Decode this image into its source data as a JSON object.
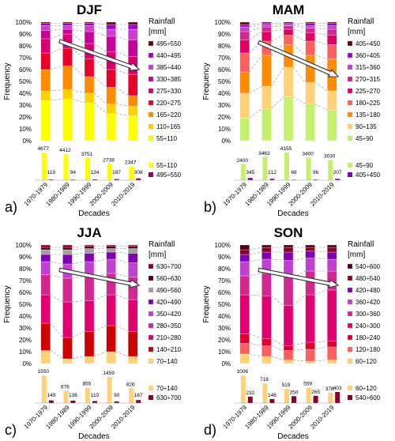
{
  "chart_data": [
    {
      "type": "bar",
      "stacked": true,
      "title": "DJF",
      "panel_label": "a)",
      "ylabel": "Frequency",
      "xlabel": "Decades",
      "categories": [
        "1970-1979",
        "1980-1989",
        "1990-1999",
        "2000-2009",
        "2010-2019"
      ],
      "ylim": [
        0,
        100
      ],
      "yticks": [
        "0%",
        "10%",
        "20%",
        "30%",
        "40%",
        "50%",
        "60%",
        "70%",
        "80%",
        "90%",
        "100%"
      ],
      "legend_title": "Rainfall [mm]",
      "series": [
        {
          "name": "55÷110",
          "color": "#ffff00",
          "values": [
            34,
            35,
            32,
            23,
            21
          ]
        },
        {
          "name": "110÷165",
          "color": "#ffd000",
          "values": [
            8,
            8,
            8,
            8,
            8
          ]
        },
        {
          "name": "165÷220",
          "color": "#ff8c00",
          "values": [
            18,
            20,
            14,
            14,
            9
          ]
        },
        {
          "name": "220÷275",
          "color": "#e8002a",
          "values": [
            14,
            15,
            15,
            15,
            18
          ]
        },
        {
          "name": "275÷330",
          "color": "#d5006f",
          "values": [
            12,
            12,
            13,
            15,
            15
          ]
        },
        {
          "name": "330÷385",
          "color": "#c70098",
          "values": [
            7,
            4,
            10,
            13,
            14
          ]
        },
        {
          "name": "385÷440",
          "color": "#cf3cd4",
          "values": [
            4,
            3,
            5,
            6,
            9
          ]
        },
        {
          "name": "440÷495",
          "color": "#a000c8",
          "values": [
            2,
            2,
            2,
            4,
            4
          ]
        },
        {
          "name": "495÷550",
          "color": "#5c0a0a",
          "values": [
            1,
            1,
            1,
            2,
            2
          ]
        }
      ],
      "counts": {
        "legend": [
          {
            "name": "55÷110",
            "color": "#ffff00"
          },
          {
            "name": "495÷550",
            "color": "#9a0064"
          }
        ],
        "low": {
          "values": [
            4677,
            4412,
            3751,
            2738,
            2347
          ],
          "labels": [
            "4677",
            "4412",
            "3751",
            "2738",
            "2347"
          ]
        },
        "high": {
          "values": [
            119,
            94,
            134,
            187,
            308
          ],
          "labels": [
            "119",
            "94",
            "134",
            "187",
            "308"
          ]
        }
      }
    },
    {
      "type": "bar",
      "stacked": true,
      "title": "MAM",
      "panel_label": "b)",
      "ylabel": "Frequency",
      "xlabel": "Decades",
      "categories": [
        "1970-1979",
        "1980-1989",
        "1990-1999",
        "2000-2009",
        "2010-2019"
      ],
      "ylim": [
        0,
        100
      ],
      "yticks": [
        "0%",
        "10%",
        "20%",
        "30%",
        "40%",
        "50%",
        "60%",
        "70%",
        "80%",
        "90%",
        "100%"
      ],
      "legend_title": "Rainfall [mm]",
      "series": [
        {
          "name": "45÷90",
          "color": "#c5f06e",
          "values": [
            19,
            27,
            37,
            31,
            26
          ]
        },
        {
          "name": "90÷135",
          "color": "#ffd27a",
          "values": [
            21,
            19,
            25,
            18,
            16
          ]
        },
        {
          "name": "135÷180",
          "color": "#ff8c00",
          "values": [
            18,
            26,
            19,
            23,
            27
          ]
        },
        {
          "name": "180÷225",
          "color": "#ff5f5f",
          "values": [
            16,
            12,
            8,
            12,
            12
          ]
        },
        {
          "name": "225÷270",
          "color": "#e0005f",
          "values": [
            11,
            8,
            5,
            7,
            8
          ]
        },
        {
          "name": "270÷315",
          "color": "#d02890",
          "values": [
            7,
            4,
            3,
            4,
            5
          ]
        },
        {
          "name": "315÷360",
          "color": "#c040d0",
          "values": [
            4,
            2,
            1,
            2,
            3
          ]
        },
        {
          "name": "360÷405",
          "color": "#a000c8",
          "values": [
            2,
            1,
            1,
            2,
            2
          ]
        },
        {
          "name": "405÷450",
          "color": "#5c0a0a",
          "values": [
            2,
            1,
            1,
            1,
            1
          ]
        }
      ],
      "counts": {
        "legend": [
          {
            "name": "45÷90",
            "color": "#c5f06e"
          },
          {
            "name": "405÷450",
            "color": "#8a00b0"
          }
        ],
        "low": {
          "values": [
            2400,
            3463,
            4155,
            3400,
            3030
          ],
          "labels": [
            "2400",
            "3463",
            "4155",
            "3400",
            "3030"
          ]
        },
        "high": {
          "values": [
            345,
            212,
            68,
            96,
            207
          ],
          "labels": [
            "345",
            "212",
            "68",
            "96",
            "207"
          ]
        }
      }
    },
    {
      "type": "bar",
      "stacked": true,
      "title": "JJA",
      "panel_label": "c)",
      "ylabel": "Frequency",
      "xlabel": "Decades",
      "categories": [
        "1970-1979",
        "1980-1989",
        "1990-1999",
        "2000-2009",
        "2010-2019"
      ],
      "ylim": [
        0,
        100
      ],
      "yticks": [
        "0%",
        "10%",
        "20%",
        "30%",
        "40%",
        "50%",
        "60%",
        "70%",
        "80%",
        "90%",
        "100%"
      ],
      "legend_title": "Rainfall [mm]",
      "series": [
        {
          "name": "70÷140",
          "color": "#ffd27a",
          "values": [
            11,
            4,
            6,
            10,
            6
          ]
        },
        {
          "name": "140÷210",
          "color": "#cc0000",
          "values": [
            23,
            18,
            21,
            22,
            21
          ]
        },
        {
          "name": "210÷280",
          "color": "#e0006f",
          "values": [
            24,
            30,
            26,
            26,
            27
          ]
        },
        {
          "name": "280÷350",
          "color": "#d02890",
          "values": [
            17,
            20,
            20,
            18,
            19
          ]
        },
        {
          "name": "350÷420",
          "color": "#c040d0",
          "values": [
            11,
            12,
            13,
            12,
            12
          ]
        },
        {
          "name": "420÷490",
          "color": "#8000b0",
          "values": [
            6,
            8,
            7,
            6,
            8
          ]
        },
        {
          "name": "490÷560",
          "color": "#a0a0a0",
          "values": [
            4,
            4,
            4,
            3,
            4
          ]
        },
        {
          "name": "560÷630",
          "color": "#4a0010",
          "values": [
            2,
            2,
            2,
            2,
            2
          ]
        },
        {
          "name": "630÷700",
          "color": "#8b0028",
          "values": [
            2,
            2,
            1,
            1,
            1
          ]
        }
      ],
      "counts": {
        "legend": [
          {
            "name": "70÷140",
            "color": "#ffd27a"
          },
          {
            "name": "630÷700",
            "color": "#8b0028"
          }
        ],
        "low": {
          "values": [
            1550,
            676,
            855,
            1459,
            826
          ],
          "labels": [
            "1550",
            "676",
            "855",
            "1459",
            "826"
          ]
        },
        "high": {
          "values": [
            149,
            136,
            110,
            90,
            167
          ],
          "labels": [
            "149",
            "136",
            "110",
            "90",
            "167"
          ]
        }
      }
    },
    {
      "type": "bar",
      "stacked": true,
      "title": "SON",
      "panel_label": "d)",
      "ylabel": "Frequency",
      "xlabel": "Decades",
      "categories": [
        "1970-1979",
        "1980-1989",
        "1990-1999",
        "2000-2009",
        "2010-2019"
      ],
      "ylim": [
        0,
        100
      ],
      "yticks": [
        "0%",
        "10%",
        "20%",
        "30%",
        "40%",
        "50%",
        "60%",
        "70%",
        "80%",
        "90%",
        "100%"
      ],
      "legend_title": "Rainfall [mm]",
      "series": [
        {
          "name": "60÷120",
          "color": "#ffd27a",
          "values": [
            8,
            6,
            3,
            2,
            3
          ]
        },
        {
          "name": "120÷180",
          "color": "#ff5f5f",
          "values": [
            9,
            9,
            8,
            10,
            11
          ]
        },
        {
          "name": "180÷240",
          "color": "#e00030",
          "values": [
            8,
            6,
            4,
            6,
            5
          ]
        },
        {
          "name": "240÷300",
          "color": "#e0006f",
          "values": [
            33,
            36,
            34,
            40,
            43
          ]
        },
        {
          "name": "300÷360",
          "color": "#d02890",
          "values": [
            16,
            19,
            24,
            20,
            16
          ]
        },
        {
          "name": "360÷420",
          "color": "#c040d0",
          "values": [
            12,
            12,
            14,
            11,
            10
          ]
        },
        {
          "name": "420÷480",
          "color": "#8000b0",
          "values": [
            6,
            6,
            7,
            6,
            6
          ]
        },
        {
          "name": "480÷540",
          "color": "#8b0028",
          "values": [
            4,
            4,
            4,
            3,
            4
          ]
        },
        {
          "name": "540÷600",
          "color": "#4a0010",
          "values": [
            4,
            2,
            2,
            2,
            2
          ]
        }
      ],
      "counts": {
        "legend": [
          {
            "name": "60÷120",
            "color": "#ffd27a"
          },
          {
            "name": "540÷600",
            "color": "#8b0028"
          }
        ],
        "low": {
          "values": [
            1006,
            718,
            519,
            559,
            378
          ],
          "labels": [
            "1006",
            "718",
            "519",
            "559",
            "378"
          ]
        },
        "high": {
          "values": [
            232,
            146,
            250,
            265,
            403
          ],
          "labels": [
            "232",
            "146",
            "250",
            "265",
            "403"
          ]
        }
      }
    }
  ]
}
